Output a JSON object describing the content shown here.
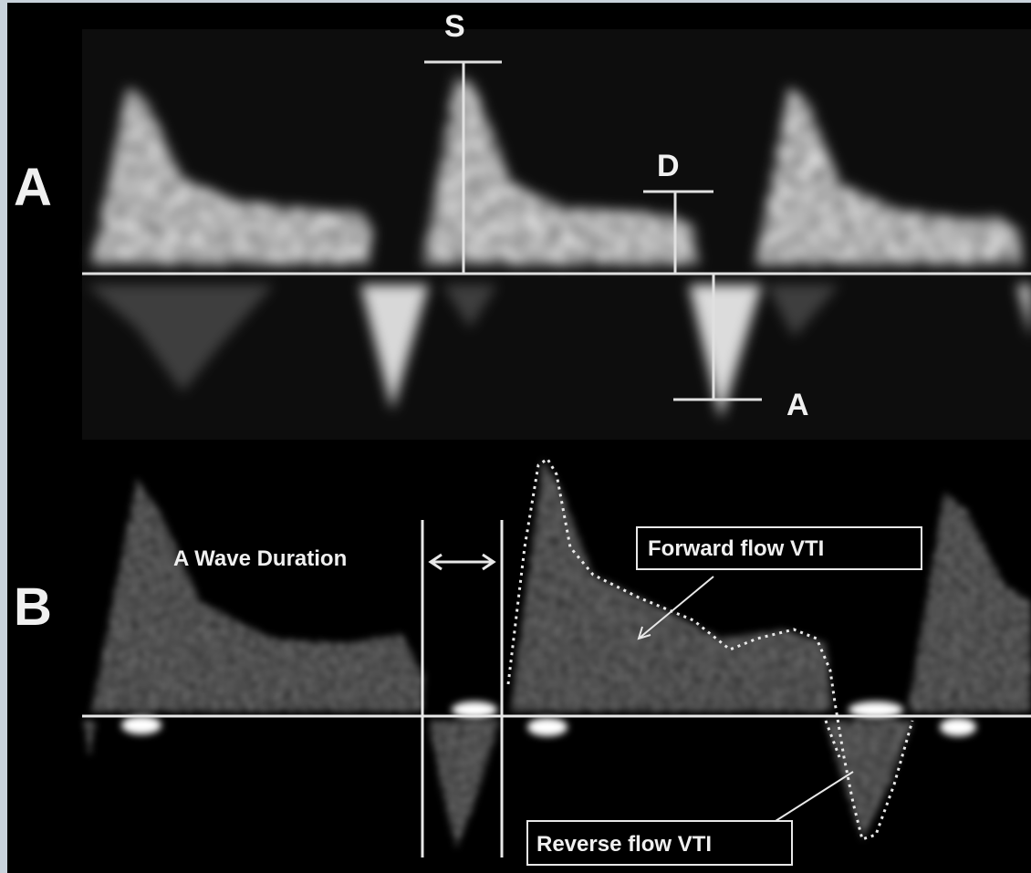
{
  "panel_a": {
    "label": "A",
    "peak_s": "S",
    "peak_d": "D",
    "peak_a": "A"
  },
  "panel_b": {
    "label": "B",
    "a_wave_duration": "A Wave Duration",
    "forward_flow": "Forward flow VTI",
    "reverse_flow": "Reverse flow VTI"
  },
  "colors": {
    "background": "#000000",
    "doppler_signal": "#e8e8e8",
    "frame_border": "#c9d3dc"
  }
}
